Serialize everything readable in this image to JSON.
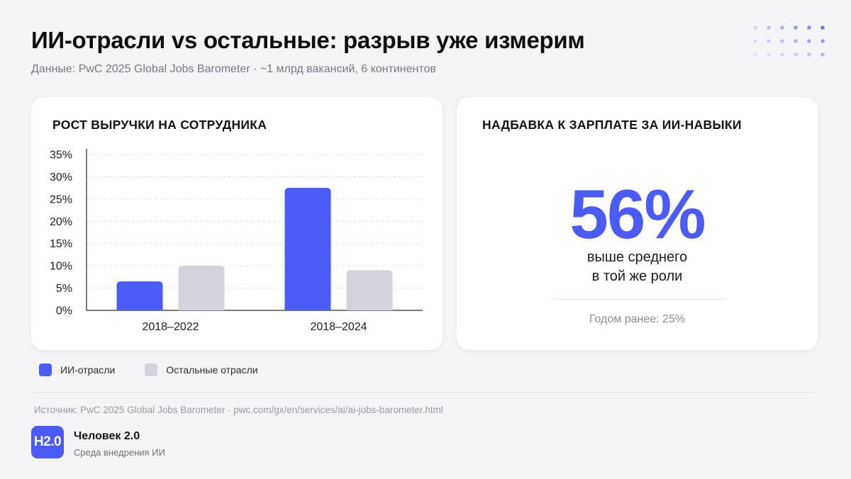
{
  "header": {
    "title": "ИИ-отрасли vs остальные: разрыв уже измерим",
    "subtitle": "Данные: PwC 2025 Global Jobs Barometer · ~1 млрд вакансий, 6 континентов"
  },
  "colors": {
    "accent": "#4b5bf6",
    "secondary": "#d3d3dc",
    "dots_dark": "#6c77ef",
    "dots_light": "#c9ccef"
  },
  "chart_data": {
    "type": "bar",
    "title": "РОСТ ВЫРУЧКИ НА СОТРУДНИКА",
    "categories": [
      "2018–2022",
      "2018–2024"
    ],
    "series": [
      {
        "name": "ИИ-отрасли",
        "values": [
          6.5,
          27.5
        ],
        "color": "#4b5bf6"
      },
      {
        "name": "Остальные отрасли",
        "values": [
          10,
          9
        ],
        "color": "#d3d3dc"
      }
    ],
    "ylim": [
      0,
      35
    ],
    "yticks": [
      "0%",
      "5%",
      "10%",
      "15%",
      "20%",
      "25%",
      "30%",
      "35%"
    ],
    "grid": true,
    "legend_position": "bottom-left"
  },
  "stat_card": {
    "title": "НАДБАВКА К ЗАРПЛАТЕ ЗА ИИ-НАВЫКИ",
    "value": "56%",
    "line1": "выше среднего",
    "line2": "в той же роли",
    "previous": "Годом ранее: 25%"
  },
  "legend": {
    "ai_label": "ИИ-отрасли",
    "other_label": "Остальные отрасли"
  },
  "footer": {
    "source": "Источник: PwC 2025 Global Jobs Barometer · pwc.com/gx/en/services/ai/ai-jobs-barometer.html",
    "logo_text": "H2.0",
    "brand_name": "Человек 2.0",
    "brand_sub": "Среда внедрения ИИ"
  }
}
